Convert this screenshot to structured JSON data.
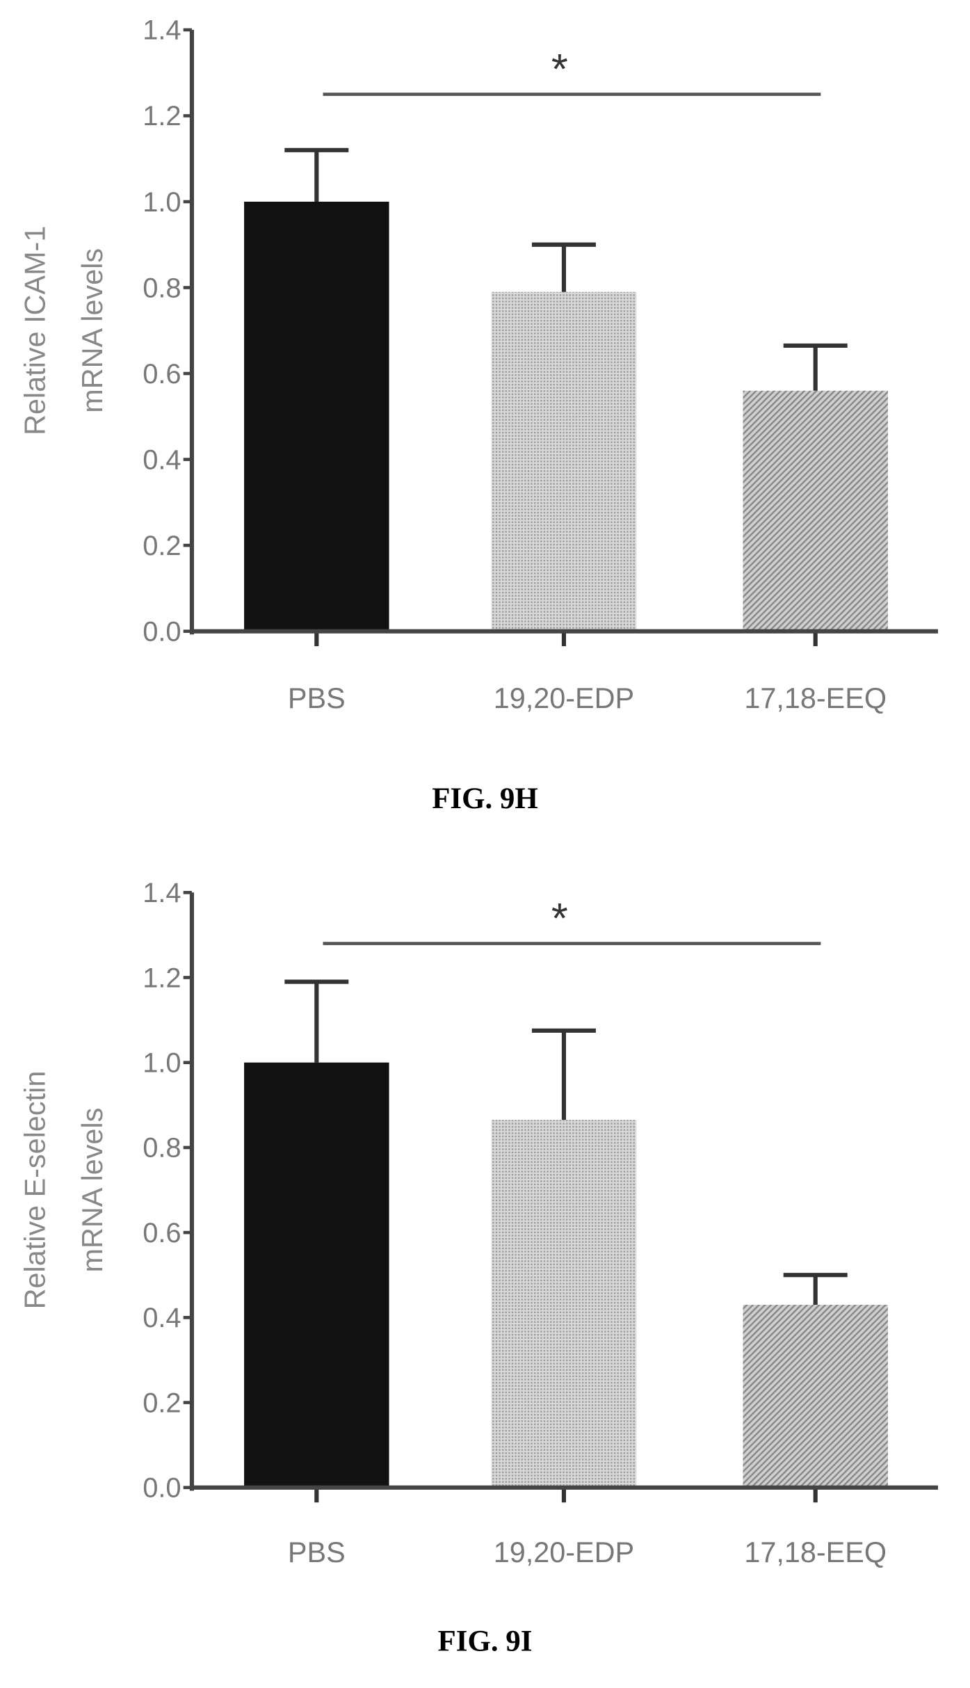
{
  "chart_data": [
    {
      "type": "bar",
      "figure_label": "FIG. 9H",
      "ylabel_line1": "Relative ICAM-1",
      "ylabel_line2": "mRNA levels",
      "xlabel": "",
      "categories": [
        "PBS",
        "19,20-EDP",
        "17,18-EEQ"
      ],
      "values": [
        1.0,
        0.79,
        0.56
      ],
      "error_upper": [
        1.12,
        0.9,
        0.665
      ],
      "ylim": [
        0,
        1.4
      ],
      "yticks": [
        "0.0",
        "0.2",
        "0.4",
        "0.6",
        "0.8",
        "1.0",
        "1.2",
        "1.4"
      ],
      "bar_colors": [
        "#111111",
        "#c4c4c4",
        "#a8a8a8"
      ],
      "significance": {
        "label": "*",
        "from": "PBS",
        "to": "17,18-EEQ",
        "level": 1.25
      },
      "grid": false
    },
    {
      "type": "bar",
      "figure_label": "FIG. 9I",
      "ylabel_line1": "Relative E-selectin",
      "ylabel_line2": "mRNA levels",
      "xlabel": "",
      "categories": [
        "PBS",
        "19,20-EDP",
        "17,18-EEQ"
      ],
      "values": [
        1.0,
        0.865,
        0.43
      ],
      "error_upper": [
        1.19,
        1.075,
        0.5
      ],
      "ylim": [
        0,
        1.4
      ],
      "yticks": [
        "0.0",
        "0.2",
        "0.4",
        "0.6",
        "0.8",
        "1.0",
        "1.2",
        "1.4"
      ],
      "bar_colors": [
        "#111111",
        "#c4c4c4",
        "#a8a8a8"
      ],
      "significance": {
        "label": "*",
        "from": "PBS",
        "to": "17,18-EEQ",
        "level": 1.28
      },
      "grid": false
    }
  ]
}
